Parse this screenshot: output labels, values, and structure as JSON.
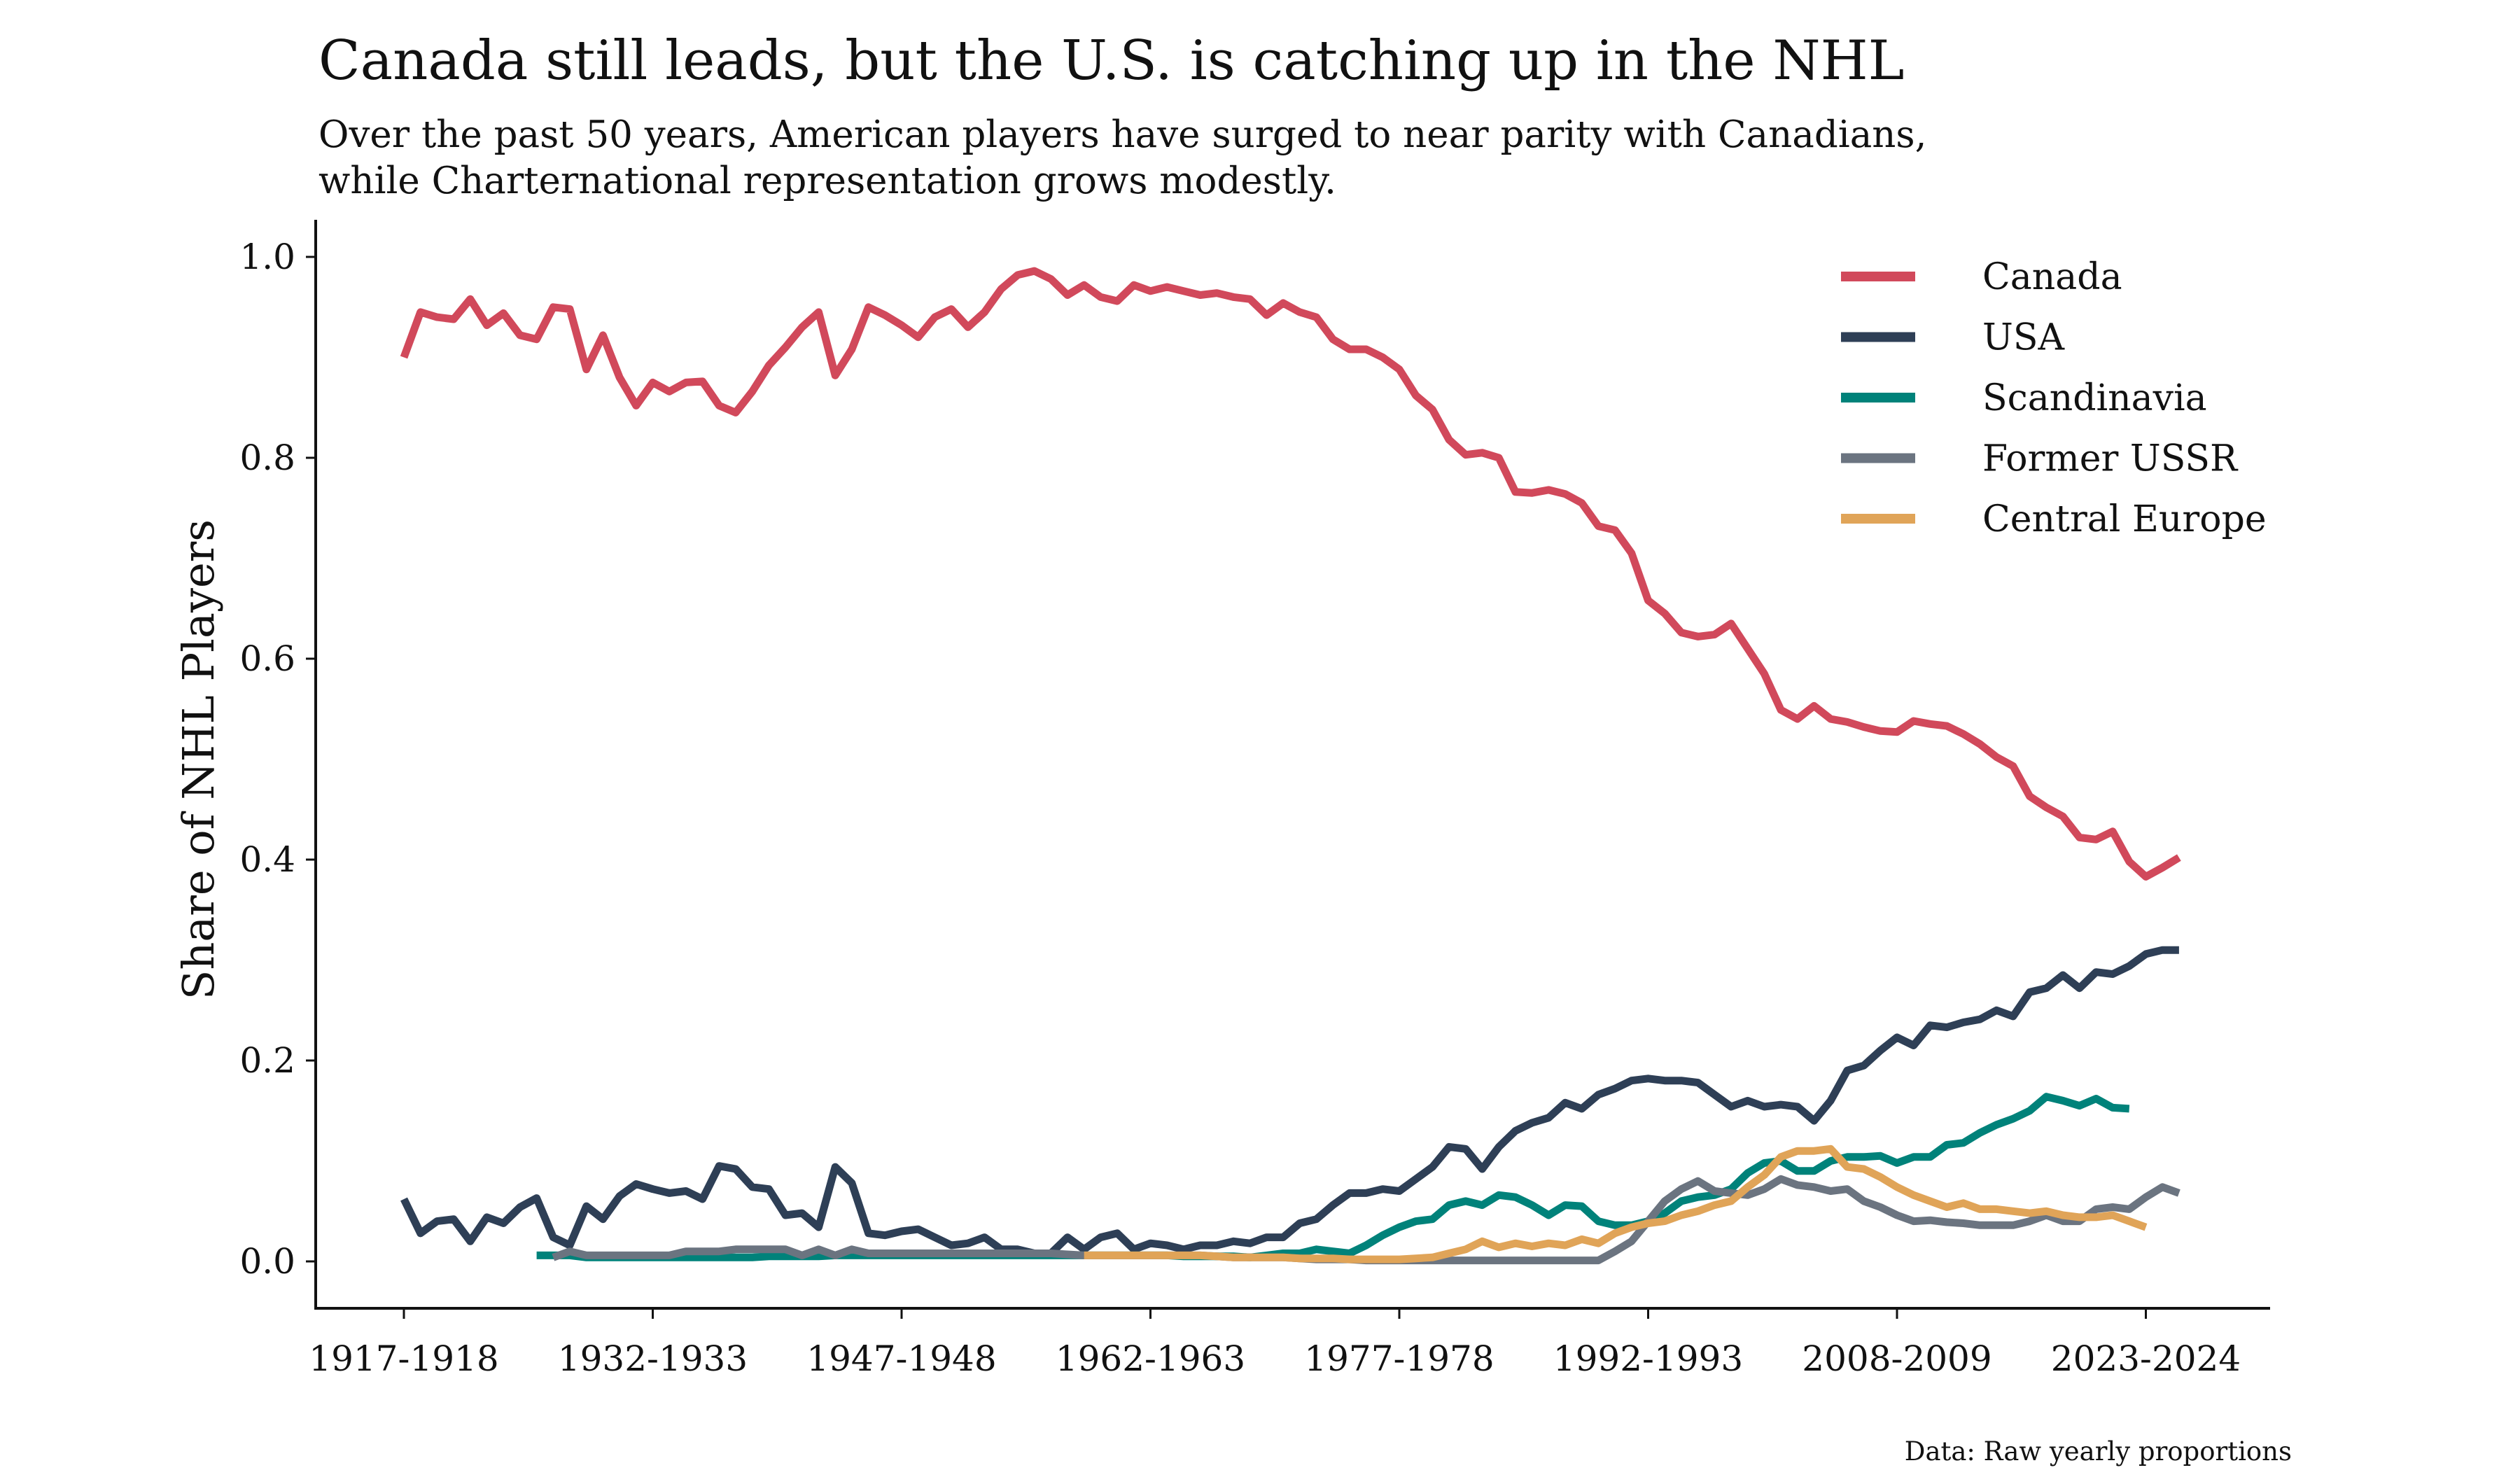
{
  "header": {
    "title": "Canada still leads, but the U.S. is catching up in the NHL",
    "subtitle_line1": "Over the past 50 years, American players have surged to near parity with Canadians,",
    "subtitle_line2": "while Charternational representation grows modestly."
  },
  "footer": {
    "source": "Data: Raw yearly proportions"
  },
  "chart_data": {
    "type": "line",
    "title": "Canada still leads, but the U.S. is catching up in the NHL",
    "subtitle": "Over the past 50 years, American players have surged to near parity with Canadians, while Charternational representation grows modestly.",
    "xlabel": "",
    "ylabel": "Share of NHL Players",
    "ylim": [
      -0.05,
      1.04
    ],
    "yticks": [
      0.0,
      0.2,
      0.4,
      0.6,
      0.8,
      1.0
    ],
    "ytick_labels": [
      "0.0",
      "0.2",
      "0.4",
      "0.6",
      "0.8",
      "1.0"
    ],
    "xtick_labels": [
      "1917-1918",
      "1932-1933",
      "1947-1948",
      "1962-1963",
      "1977-1978",
      "1992-1993",
      "2008-2009",
      "2023-2024"
    ],
    "xtick_index": [
      0,
      15,
      30,
      45,
      60,
      75,
      90,
      105
    ],
    "x_start": "1917-1918",
    "x_end": "2024-2025",
    "grid": false,
    "legend_position": "upper right",
    "series": [
      {
        "name": "Canada",
        "color": "#D1495B",
        "values": [
          0.9,
          0.945,
          0.94,
          0.938,
          0.958,
          0.932,
          0.944,
          0.922,
          0.918,
          0.95,
          0.948,
          0.888,
          0.922,
          0.88,
          0.852,
          0.875,
          0.866,
          0.875,
          0.876,
          0.852,
          0.845,
          0.866,
          0.892,
          0.91,
          0.93,
          0.945,
          0.882,
          0.908,
          0.95,
          0.942,
          0.932,
          0.92,
          0.94,
          0.948,
          0.93,
          0.945,
          0.968,
          0.982,
          0.986,
          0.978,
          0.962,
          0.972,
          0.96,
          0.956,
          0.972,
          0.966,
          0.97,
          0.966,
          0.962,
          0.964,
          0.96,
          0.958,
          0.942,
          0.954,
          0.945,
          0.94,
          0.918,
          0.908,
          0.908,
          0.9,
          0.888,
          0.862,
          0.848,
          0.818,
          0.803,
          0.805,
          0.8,
          0.766,
          0.765,
          0.768,
          0.764,
          0.755,
          0.732,
          0.728,
          0.705,
          0.658,
          0.645,
          0.626,
          0.622,
          0.624,
          0.635,
          0.61,
          0.585,
          0.549,
          0.54,
          0.553,
          0.54,
          0.537,
          0.532,
          0.528,
          0.527,
          0.538,
          0.535,
          0.533,
          0.525,
          0.515,
          0.502,
          0.493,
          0.463,
          0.452,
          0.443,
          0.422,
          0.42,
          0.428,
          0.398,
          0.383,
          0.392,
          0.402
        ]
      },
      {
        "name": "USA",
        "color": "#2E3F56",
        "values": [
          0.062,
          0.028,
          0.04,
          0.042,
          0.02,
          0.044,
          0.038,
          0.054,
          0.063,
          0.024,
          0.016,
          0.055,
          0.042,
          0.065,
          0.077,
          0.072,
          0.068,
          0.07,
          0.062,
          0.095,
          0.092,
          0.074,
          0.072,
          0.046,
          0.048,
          0.034,
          0.094,
          0.078,
          0.028,
          0.026,
          0.03,
          0.032,
          0.024,
          0.016,
          0.018,
          0.024,
          0.012,
          0.012,
          0.008,
          0.008,
          0.024,
          0.012,
          0.024,
          0.028,
          0.012,
          0.018,
          0.016,
          0.012,
          0.016,
          0.016,
          0.02,
          0.018,
          0.024,
          0.024,
          0.038,
          0.042,
          0.056,
          0.068,
          0.068,
          0.072,
          0.07,
          0.082,
          0.094,
          0.114,
          0.112,
          0.092,
          0.114,
          0.13,
          0.138,
          0.143,
          0.158,
          0.152,
          0.166,
          0.172,
          0.18,
          0.182,
          0.18,
          0.18,
          0.178,
          0.166,
          0.154,
          0.16,
          0.154,
          0.156,
          0.154,
          0.14,
          0.16,
          0.19,
          0.195,
          0.21,
          0.223,
          0.215,
          0.235,
          0.233,
          0.238,
          0.241,
          0.25,
          0.244,
          0.268,
          0.272,
          0.285,
          0.272,
          0.288,
          0.286,
          0.294,
          0.306,
          0.31,
          0.31
        ]
      },
      {
        "name": "Scandinavia",
        "color": "#00827A",
        "values": [
          null,
          null,
          null,
          null,
          null,
          null,
          null,
          null,
          0.006,
          0.006,
          0.006,
          0.004,
          0.004,
          0.004,
          0.004,
          0.004,
          0.004,
          0.004,
          0.004,
          0.004,
          0.004,
          0.004,
          0.005,
          0.005,
          0.005,
          0.005,
          0.006,
          0.006,
          0.006,
          0.006,
          0.006,
          0.006,
          0.006,
          0.006,
          0.006,
          0.006,
          0.006,
          0.006,
          0.006,
          0.006,
          0.006,
          0.006,
          0.006,
          0.006,
          0.006,
          0.006,
          0.006,
          0.005,
          0.005,
          0.005,
          0.005,
          0.004,
          0.006,
          0.008,
          0.008,
          0.012,
          0.01,
          0.008,
          0.016,
          0.026,
          0.034,
          0.04,
          0.042,
          0.056,
          0.06,
          0.056,
          0.066,
          0.064,
          0.056,
          0.046,
          0.056,
          0.055,
          0.04,
          0.036,
          0.036,
          0.04,
          0.048,
          0.06,
          0.064,
          0.066,
          0.072,
          0.088,
          0.098,
          0.1,
          0.09,
          0.09,
          0.1,
          0.104,
          0.104,
          0.105,
          0.098,
          0.104,
          0.104,
          0.116,
          0.118,
          0.128,
          0.136,
          0.142,
          0.15,
          0.164,
          0.16,
          0.155,
          0.162,
          0.153,
          0.152
        ]
      },
      {
        "name": "Former USSR",
        "color": "#6B7480",
        "values": [
          null,
          null,
          null,
          null,
          null,
          null,
          null,
          null,
          null,
          0.004,
          0.01,
          0.006,
          0.006,
          0.006,
          0.006,
          0.006,
          0.006,
          0.01,
          0.01,
          0.01,
          0.012,
          0.012,
          0.012,
          0.012,
          0.006,
          0.012,
          0.006,
          0.012,
          0.008,
          0.008,
          0.008,
          0.008,
          0.008,
          0.008,
          0.008,
          0.008,
          0.008,
          0.008,
          0.008,
          0.008,
          0.007,
          0.006,
          0.006,
          0.006,
          0.006,
          0.006,
          0.006,
          0.006,
          0.006,
          0.005,
          0.004,
          0.004,
          0.004,
          0.004,
          0.003,
          0.002,
          0.002,
          0.002,
          0.001,
          0.001,
          0.001,
          0.001,
          0.001,
          0.001,
          0.001,
          0.001,
          0.001,
          0.001,
          0.001,
          0.001,
          0.001,
          0.001,
          0.001,
          0.01,
          0.02,
          0.04,
          0.06,
          0.072,
          0.08,
          0.07,
          0.068,
          0.066,
          0.072,
          0.082,
          0.076,
          0.074,
          0.07,
          0.072,
          0.06,
          0.054,
          0.046,
          0.04,
          0.041,
          0.039,
          0.038,
          0.036,
          0.036,
          0.036,
          0.04,
          0.046,
          0.04,
          0.04,
          0.052,
          0.054,
          0.052,
          0.064,
          0.074,
          0.068
        ]
      },
      {
        "name": "Central Europe",
        "color": "#E0A458",
        "values": [
          null,
          null,
          null,
          null,
          null,
          null,
          null,
          null,
          null,
          null,
          null,
          null,
          null,
          null,
          null,
          null,
          null,
          null,
          null,
          null,
          null,
          null,
          null,
          null,
          null,
          null,
          null,
          null,
          null,
          null,
          null,
          null,
          null,
          null,
          null,
          null,
          null,
          null,
          null,
          null,
          null,
          0.006,
          0.006,
          0.006,
          0.006,
          0.006,
          0.006,
          0.006,
          0.006,
          0.005,
          0.004,
          0.004,
          0.004,
          0.004,
          0.003,
          0.003,
          0.003,
          0.002,
          0.002,
          0.002,
          0.002,
          0.003,
          0.004,
          0.008,
          0.012,
          0.02,
          0.014,
          0.018,
          0.015,
          0.018,
          0.016,
          0.022,
          0.018,
          0.028,
          0.034,
          0.038,
          0.04,
          0.046,
          0.05,
          0.056,
          0.06,
          0.074,
          0.086,
          0.104,
          0.11,
          0.11,
          0.112,
          0.094,
          0.092,
          0.084,
          0.074,
          0.066,
          0.06,
          0.054,
          0.058,
          0.052,
          0.052,
          0.05,
          0.048,
          0.05,
          0.046,
          0.044,
          0.044,
          0.046,
          0.04,
          0.034
        ]
      }
    ]
  }
}
